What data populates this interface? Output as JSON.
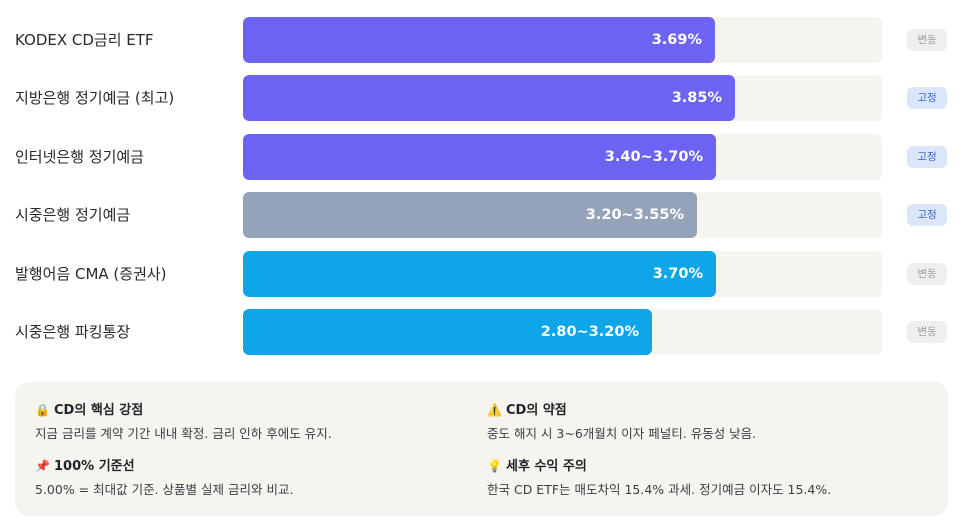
{
  "chart_data": {
    "type": "bar",
    "orientation": "horizontal",
    "xlim": [
      0,
      5
    ],
    "rows": [
      {
        "label": "KODEX CD금리 ETF",
        "value": 3.69,
        "value_label": "3.69%",
        "color": "#6c63f2",
        "badge": "변동",
        "badge_type": "variable"
      },
      {
        "label": "지방은행 정기예금 (최고)",
        "value": 3.85,
        "value_label": "3.85%",
        "color": "#6c63f2",
        "badge": "고정",
        "badge_type": "fixed"
      },
      {
        "label": "인터넷은행 정기예금",
        "value": 3.7,
        "value_label": "3.40~3.70%",
        "color": "#6c63f2",
        "badge": "고정",
        "badge_type": "fixed"
      },
      {
        "label": "시중은행 정기예금",
        "value": 3.55,
        "value_label": "3.20~3.55%",
        "color": "#94a3b8",
        "badge": "고정",
        "badge_type": "fixed"
      },
      {
        "label": "발행어음 CMA (증권사)",
        "value": 3.7,
        "value_label": "3.70%",
        "color": "#0ea5e9",
        "badge": "변동",
        "badge_type": "variable"
      },
      {
        "label": "시중은행 파킹통장",
        "value": 3.2,
        "value_label": "2.80~3.20%",
        "color": "#0ea5e9",
        "badge": "변동",
        "badge_type": "variable"
      }
    ]
  },
  "notes": {
    "cd_strength": {
      "icon": "🔒",
      "title": "CD의 핵심 강점",
      "body": "지금 금리를 계약 기간 내내 확정. 금리 인하 후에도 유지."
    },
    "cd_weakness": {
      "icon": "⚠️",
      "title": "CD의 약점",
      "body": "중도 해지 시 3~6개월치 이자 페널티. 유동성 낮음."
    },
    "baseline": {
      "icon": "📌",
      "title": "100% 기준선",
      "body": "5.00% = 최대값 기준. 상품별 실제 금리와 비교."
    },
    "tax_warning": {
      "icon": "💡",
      "title": "세후 수익 주의",
      "body": "한국 CD ETF는 매도차익 15.4% 과세. 정기예금 이자도 15.4%."
    }
  }
}
